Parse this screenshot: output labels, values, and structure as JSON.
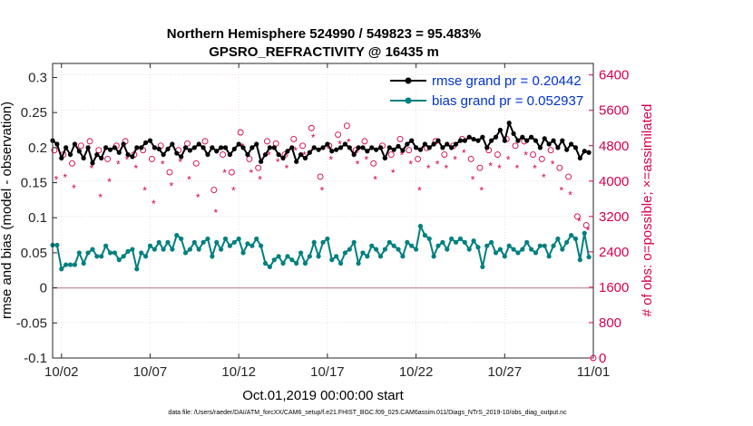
{
  "chart_data": {
    "type": "line",
    "title_line1": "Northern Hemisphere 524990 / 549823 = 95.483%",
    "title_line2": "GPSRO_REFRACTIVITY @ 16435 m",
    "xlabel": "Oct.01,2019 00:00:00 start",
    "ylabel_left": "rmse and bias (model - observation)",
    "ylabel_right": "# of obs: o=possible; ×=assimilated",
    "footnote": "data file: /Users/raeder/DAI/ATM_forcXX/CAM6_setup/f.e21.FHIST_BGC.f09_025.CAM6assim.011/Diags_NTrS_2019-10/obs_diag_output.nc",
    "xlim": [
      1.5,
      32.0
    ],
    "ylim_left": [
      -0.1,
      0.32
    ],
    "ylim_right": [
      0,
      6660
    ],
    "x_ticks": [
      2,
      7,
      12,
      17,
      22,
      27,
      32
    ],
    "x_tick_labels": [
      "10/02",
      "10/07",
      "10/12",
      "10/17",
      "10/22",
      "10/27",
      "11/01"
    ],
    "y_ticks_left": [
      -0.1,
      -0.05,
      0,
      0.05,
      0.1,
      0.15,
      0.2,
      0.25,
      0.3
    ],
    "y_tick_labels_left": [
      "-0.1",
      "-0.05",
      "0",
      "0.05",
      "0.1",
      "0.15",
      "0.2",
      "0.25",
      "0.3"
    ],
    "y_ticks_right": [
      0,
      800,
      1600,
      2400,
      3200,
      4000,
      4800,
      5600,
      6400
    ],
    "y_tick_labels_right": [
      "0",
      "800",
      "1600",
      "2400",
      "3200",
      "4000",
      "4800",
      "5600",
      "6400"
    ],
    "colors": {
      "rmse": "#000000",
      "bias": "#00807f",
      "obs": "#d6004f",
      "legend_text": "#0033cc",
      "zero_line": "#c8a0a8",
      "grid": "#e6c8cc"
    },
    "series": [
      {
        "name": "rmse grand pr = 0.20442",
        "axis": "left",
        "x": [
          1.5,
          1.75,
          2.0,
          2.25,
          2.5,
          2.75,
          3.0,
          3.25,
          3.5,
          3.75,
          4.0,
          4.25,
          4.5,
          4.75,
          5.0,
          5.25,
          5.5,
          5.75,
          6.0,
          6.25,
          6.5,
          6.75,
          7.0,
          7.25,
          7.5,
          7.75,
          8.0,
          8.25,
          8.5,
          8.75,
          9.0,
          9.25,
          9.5,
          9.75,
          10.0,
          10.25,
          10.5,
          10.75,
          11.0,
          11.25,
          11.5,
          11.75,
          12.0,
          12.25,
          12.5,
          12.75,
          13.0,
          13.25,
          13.5,
          13.75,
          14.0,
          14.25,
          14.5,
          14.75,
          15.0,
          15.25,
          15.5,
          15.75,
          16.0,
          16.25,
          16.5,
          16.75,
          17.0,
          17.25,
          17.5,
          17.75,
          18.0,
          18.25,
          18.5,
          18.75,
          19.0,
          19.25,
          19.5,
          19.75,
          20.0,
          20.25,
          20.5,
          20.75,
          21.0,
          21.25,
          21.5,
          21.75,
          22.0,
          22.25,
          22.5,
          22.75,
          23.0,
          23.25,
          23.5,
          23.75,
          24.0,
          24.25,
          24.5,
          24.75,
          25.0,
          25.25,
          25.5,
          25.75,
          26.0,
          26.25,
          26.5,
          26.75,
          27.0,
          27.25,
          27.5,
          27.75,
          28.0,
          28.25,
          28.5,
          28.75,
          29.0,
          29.25,
          29.5,
          29.75,
          30.0,
          30.25,
          30.5,
          30.75,
          31.0,
          31.25,
          31.5,
          31.75
        ],
        "values": [
          0.21,
          0.205,
          0.185,
          0.2,
          0.19,
          0.205,
          0.195,
          0.185,
          0.2,
          0.178,
          0.19,
          0.185,
          0.2,
          0.197,
          0.2,
          0.193,
          0.205,
          0.19,
          0.187,
          0.2,
          0.2,
          0.207,
          0.21,
          0.2,
          0.198,
          0.19,
          0.198,
          0.205,
          0.192,
          0.187,
          0.2,
          0.196,
          0.2,
          0.205,
          0.2,
          0.19,
          0.2,
          0.195,
          0.2,
          0.2,
          0.19,
          0.198,
          0.205,
          0.2,
          0.19,
          0.2,
          0.205,
          0.18,
          0.19,
          0.2,
          0.2,
          0.19,
          0.185,
          0.195,
          0.2,
          0.18,
          0.19,
          0.185,
          0.193,
          0.2,
          0.197,
          0.2,
          0.205,
          0.195,
          0.197,
          0.2,
          0.205,
          0.2,
          0.19,
          0.2,
          0.2,
          0.195,
          0.2,
          0.197,
          0.2,
          0.185,
          0.2,
          0.197,
          0.202,
          0.196,
          0.205,
          0.21,
          0.2,
          0.197,
          0.205,
          0.2,
          0.205,
          0.21,
          0.2,
          0.205,
          0.2,
          0.205,
          0.21,
          0.21,
          0.215,
          0.212,
          0.21,
          0.215,
          0.2,
          0.21,
          0.215,
          0.225,
          0.21,
          0.235,
          0.22,
          0.21,
          0.215,
          0.21,
          0.215,
          0.21,
          0.2,
          0.213,
          0.205,
          0.21,
          0.2,
          0.21,
          0.197,
          0.205,
          0.2,
          0.185,
          0.195,
          0.193
        ]
      },
      {
        "name": "bias grand pr = 0.052937",
        "axis": "left",
        "x": [
          1.5,
          1.75,
          2.0,
          2.25,
          2.5,
          2.75,
          3.0,
          3.25,
          3.5,
          3.75,
          4.0,
          4.25,
          4.5,
          4.75,
          5.0,
          5.25,
          5.5,
          5.75,
          6.0,
          6.25,
          6.5,
          6.75,
          7.0,
          7.25,
          7.5,
          7.75,
          8.0,
          8.25,
          8.5,
          8.75,
          9.0,
          9.25,
          9.5,
          9.75,
          10.0,
          10.25,
          10.5,
          10.75,
          11.0,
          11.25,
          11.5,
          11.75,
          12.0,
          12.25,
          12.5,
          12.75,
          13.0,
          13.25,
          13.5,
          13.75,
          14.0,
          14.25,
          14.5,
          14.75,
          15.0,
          15.25,
          15.5,
          15.75,
          16.0,
          16.25,
          16.5,
          16.75,
          17.0,
          17.25,
          17.5,
          17.75,
          18.0,
          18.25,
          18.5,
          18.75,
          19.0,
          19.25,
          19.5,
          19.75,
          20.0,
          20.25,
          20.5,
          20.75,
          21.0,
          21.25,
          21.5,
          21.75,
          22.0,
          22.25,
          22.5,
          22.75,
          23.0,
          23.25,
          23.5,
          23.75,
          24.0,
          24.25,
          24.5,
          24.75,
          25.0,
          25.25,
          25.5,
          25.75,
          26.0,
          26.25,
          26.5,
          26.75,
          27.0,
          27.25,
          27.5,
          27.75,
          28.0,
          28.25,
          28.5,
          28.75,
          29.0,
          29.25,
          29.5,
          29.75,
          30.0,
          30.25,
          30.5,
          30.75,
          31.0,
          31.25,
          31.5,
          31.75
        ],
        "values": [
          0.061,
          0.061,
          0.027,
          0.033,
          0.033,
          0.033,
          0.05,
          0.035,
          0.05,
          0.055,
          0.045,
          0.045,
          0.06,
          0.05,
          0.05,
          0.04,
          0.045,
          0.052,
          0.055,
          0.027,
          0.05,
          0.045,
          0.06,
          0.055,
          0.065,
          0.055,
          0.065,
          0.055,
          0.075,
          0.07,
          0.05,
          0.055,
          0.065,
          0.055,
          0.065,
          0.07,
          0.045,
          0.065,
          0.055,
          0.07,
          0.06,
          0.065,
          0.07,
          0.05,
          0.063,
          0.06,
          0.07,
          0.06,
          0.035,
          0.03,
          0.04,
          0.045,
          0.035,
          0.045,
          0.04,
          0.035,
          0.05,
          0.035,
          0.045,
          0.065,
          0.045,
          0.065,
          0.07,
          0.04,
          0.045,
          0.035,
          0.05,
          0.055,
          0.065,
          0.035,
          0.05,
          0.045,
          0.06,
          0.055,
          0.045,
          0.055,
          0.065,
          0.06,
          0.055,
          0.045,
          0.065,
          0.06,
          0.055,
          0.088,
          0.075,
          0.07,
          0.045,
          0.06,
          0.065,
          0.055,
          0.07,
          0.065,
          0.07,
          0.065,
          0.055,
          0.067,
          0.058,
          0.03,
          0.06,
          0.065,
          0.05,
          0.055,
          0.045,
          0.06,
          0.055,
          0.05,
          0.055,
          0.065,
          0.055,
          0.05,
          0.06,
          0.06,
          0.045,
          0.06,
          0.07,
          0.055,
          0.065,
          0.075,
          0.07,
          0.04,
          0.078,
          0.044
        ]
      },
      {
        "name": "possible obs count",
        "axis": "right",
        "marker": "circle",
        "x": [
          1.6,
          2.1,
          2.6,
          3.1,
          3.6,
          4.1,
          4.6,
          5.1,
          5.6,
          6.1,
          6.6,
          7.1,
          7.6,
          8.1,
          8.6,
          9.1,
          9.6,
          10.1,
          10.6,
          11.1,
          11.6,
          12.1,
          12.6,
          13.1,
          13.6,
          14.1,
          14.6,
          15.1,
          15.6,
          16.1,
          16.6,
          17.1,
          17.6,
          18.1,
          18.6,
          19.1,
          19.6,
          20.1,
          20.6,
          21.1,
          21.6,
          22.1,
          22.6,
          23.1,
          23.6,
          24.1,
          24.6,
          25.1,
          25.6,
          26.1,
          26.6,
          27.1,
          27.6,
          28.1,
          28.6,
          29.1,
          29.6,
          30.1,
          30.6,
          31.1,
          31.6,
          32.0
        ],
        "values": [
          4700,
          4600,
          4400,
          4800,
          4900,
          4700,
          4500,
          4800,
          4900,
          4600,
          4700,
          4500,
          4800,
          4200,
          4700,
          4850,
          4400,
          4900,
          3800,
          4600,
          4200,
          5100,
          4500,
          4300,
          4900,
          4850,
          4600,
          4950,
          4800,
          5200,
          4100,
          4800,
          5050,
          5250,
          4700,
          4900,
          4400,
          4800,
          4600,
          4950,
          4700,
          4500,
          4750,
          4900,
          4600,
          4800,
          4950,
          4500,
          4300,
          4700,
          4600,
          4950,
          4800,
          4900,
          4600,
          4500,
          4700,
          4300,
          4100,
          3200,
          3000,
          0
        ]
      },
      {
        "name": "assimilated obs count",
        "axis": "right",
        "marker": "star",
        "x": [
          1.7,
          2.2,
          2.7,
          3.2,
          3.7,
          4.2,
          4.7,
          5.2,
          5.7,
          6.2,
          6.7,
          7.2,
          7.7,
          8.2,
          8.7,
          9.2,
          9.7,
          10.2,
          10.7,
          11.2,
          11.7,
          12.2,
          12.7,
          13.2,
          13.7,
          14.2,
          14.7,
          15.2,
          15.7,
          16.2,
          16.7,
          17.2,
          17.7,
          18.2,
          18.7,
          19.2,
          19.7,
          20.2,
          20.7,
          21.2,
          21.7,
          22.2,
          22.7,
          23.2,
          23.7,
          24.2,
          24.7,
          25.2,
          25.7,
          26.2,
          26.7,
          27.2,
          27.7,
          28.2,
          28.7,
          29.2,
          29.7,
          30.2,
          30.7,
          31.2,
          31.7
        ],
        "values": [
          4050,
          4100,
          3850,
          4500,
          4300,
          3650,
          4000,
          4400,
          4500,
          4300,
          3800,
          3500,
          4400,
          3900,
          4450,
          4050,
          3650,
          4600,
          3300,
          4200,
          3800,
          4800,
          4200,
          4050,
          4600,
          4450,
          4300,
          4700,
          4600,
          5000,
          3800,
          4500,
          4850,
          4900,
          4400,
          4500,
          4050,
          4500,
          4200,
          4600,
          4400,
          3800,
          4300,
          4400,
          4300,
          4500,
          4650,
          4050,
          3800,
          4350,
          4300,
          4500,
          4300,
          4600,
          4300,
          4100,
          4400,
          3800,
          3700,
          3100,
          2900
        ]
      }
    ],
    "legend": {
      "placement": "top-right",
      "entries": [
        "rmse grand pr = 0.20442",
        "bias grand pr = 0.052937"
      ]
    },
    "grid": true
  }
}
